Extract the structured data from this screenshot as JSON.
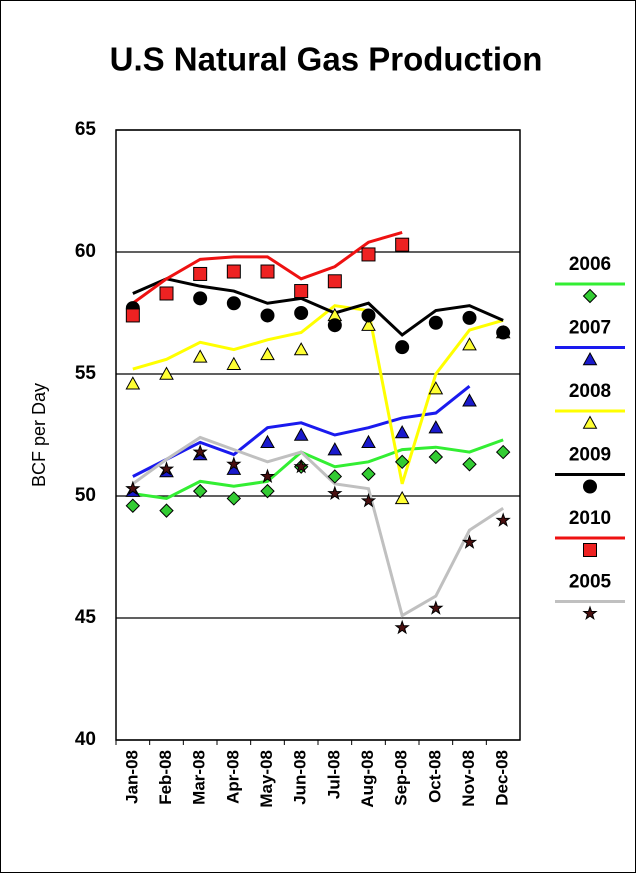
{
  "chart_data": {
    "type": "line",
    "title": "U.S Natural Gas Production",
    "y_label": "BCF per Day",
    "categories": [
      "Jan-08",
      "Feb-08",
      "Mar-08",
      "Apr-08",
      "May-08",
      "Jun-08",
      "Jul-08",
      "Aug-08",
      "Sep-08",
      "Oct-08",
      "Nov-08",
      "Dec-08"
    ],
    "ylim": [
      40,
      65
    ],
    "yticks": [
      40,
      45,
      50,
      55,
      60,
      65
    ],
    "grid": true,
    "series": [
      {
        "name": "2006",
        "color": "#33ee33",
        "marker": "diamond",
        "marker_color": "#33cc33",
        "values": [
          50.1,
          49.9,
          50.6,
          50.4,
          50.6,
          51.8,
          51.2,
          51.4,
          51.9,
          52.0,
          51.8,
          52.3
        ],
        "markers": [
          49.6,
          49.4,
          50.2,
          49.9,
          50.2,
          51.2,
          50.8,
          50.9,
          51.4,
          51.6,
          51.3,
          51.8
        ]
      },
      {
        "name": "2007",
        "color": "#1a1aee",
        "marker": "triangle",
        "marker_color": "#1a1acc",
        "values": [
          50.8,
          51.5,
          52.2,
          51.7,
          52.8,
          53.0,
          52.5,
          52.8,
          53.2,
          53.4,
          54.5,
          null
        ],
        "markers": [
          50.2,
          51.0,
          51.7,
          51.1,
          52.2,
          52.5,
          51.9,
          52.2,
          52.6,
          52.8,
          53.9,
          null
        ]
      },
      {
        "name": "2008",
        "color": "#ffff00",
        "marker": "triangle",
        "marker_color": "#ffff33",
        "values": [
          55.2,
          55.6,
          56.3,
          56.0,
          56.4,
          56.7,
          57.8,
          57.6,
          50.5,
          55.0,
          56.8,
          57.2
        ],
        "markers": [
          54.6,
          55.0,
          55.7,
          55.4,
          55.8,
          56.0,
          57.4,
          57.0,
          49.9,
          54.4,
          56.2,
          56.7
        ]
      },
      {
        "name": "2009",
        "color": "#000000",
        "marker": "circle",
        "marker_color": "#000000",
        "values": [
          58.3,
          58.9,
          58.6,
          58.4,
          57.9,
          58.1,
          57.5,
          57.9,
          56.6,
          57.6,
          57.8,
          57.2
        ],
        "markers": [
          57.7,
          58.3,
          58.1,
          57.9,
          57.4,
          57.5,
          57.0,
          57.4,
          56.1,
          57.1,
          57.3,
          56.7
        ]
      },
      {
        "name": "2010",
        "color": "#ee1111",
        "marker": "square",
        "marker_color": "#ee2222",
        "values": [
          57.9,
          58.9,
          59.7,
          59.8,
          59.8,
          58.9,
          59.4,
          60.4,
          60.8,
          null,
          null,
          null
        ],
        "markers": [
          57.4,
          58.3,
          59.1,
          59.2,
          59.2,
          58.4,
          58.8,
          59.9,
          60.3,
          null,
          null,
          null
        ]
      },
      {
        "name": "2005",
        "color": "#c0c0c0",
        "marker": "star",
        "marker_color": "#4a1010",
        "values": [
          50.5,
          51.5,
          52.4,
          51.9,
          51.4,
          51.8,
          50.5,
          50.3,
          45.1,
          45.9,
          48.6,
          49.5
        ],
        "markers": [
          50.3,
          51.1,
          51.8,
          51.3,
          50.8,
          51.2,
          50.1,
          49.8,
          44.6,
          45.4,
          48.1,
          49.0
        ]
      }
    ]
  }
}
